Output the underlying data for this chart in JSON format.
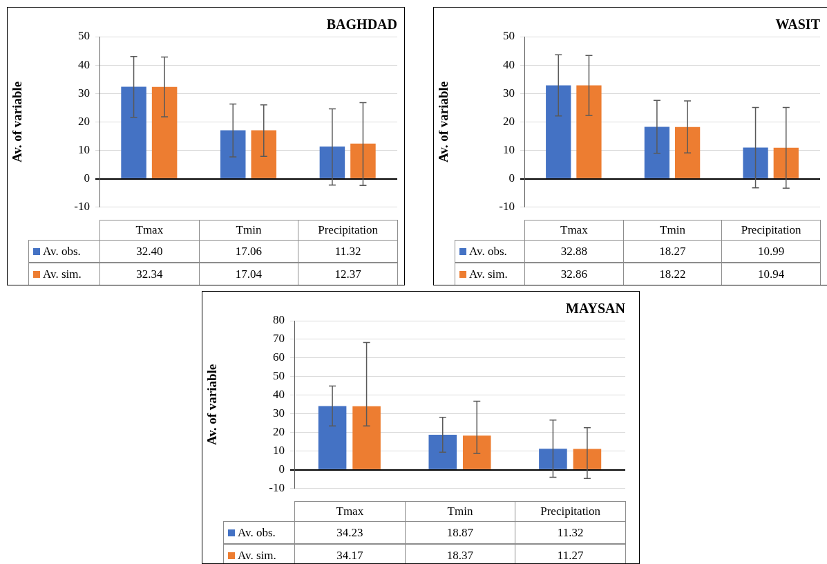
{
  "chart_data": [
    {
      "type": "bar",
      "title": "BAGHDAD",
      "ylabel": "Av. of variable",
      "categories": [
        "Tmax",
        "Tmin",
        "Precipitation"
      ],
      "ylim": [
        -10,
        50
      ],
      "yticks": [
        -10,
        0,
        10,
        20,
        30,
        40,
        50
      ],
      "grid": "y",
      "legend": "bottom",
      "series": [
        {
          "name": "Av. obs.",
          "color": "#4472c4",
          "values": [
            32.4,
            17.06,
            11.32
          ],
          "value_labels": [
            "32.40",
            "17.06",
            "11.32"
          ],
          "errors": [
            [
              21.6,
              43.0
            ],
            [
              7.7,
              26.3
            ],
            [
              -2.2,
              24.6
            ]
          ]
        },
        {
          "name": "Av. sim.",
          "color": "#ed7d31",
          "values": [
            32.34,
            17.04,
            12.37
          ],
          "value_labels": [
            "32.34",
            "17.04",
            "12.37"
          ],
          "errors": [
            [
              21.8,
              42.8
            ],
            [
              7.9,
              26.0
            ],
            [
              -2.3,
              26.8
            ]
          ]
        }
      ]
    },
    {
      "type": "bar",
      "title": "WASIT",
      "ylabel": "Av. of variable",
      "categories": [
        "Tmax",
        "Tmin",
        "Precipitation"
      ],
      "ylim": [
        -10,
        50
      ],
      "yticks": [
        -10,
        0,
        10,
        20,
        30,
        40,
        50
      ],
      "grid": "y",
      "legend": "bottom",
      "series": [
        {
          "name": "Av. obs.",
          "color": "#4472c4",
          "values": [
            32.88,
            18.27,
            10.99
          ],
          "value_labels": [
            "32.88",
            "18.27",
            "10.99"
          ],
          "errors": [
            [
              22.1,
              43.6
            ],
            [
              9.0,
              27.6
            ],
            [
              -3.2,
              25.1
            ]
          ]
        },
        {
          "name": "Av. sim.",
          "color": "#ed7d31",
          "values": [
            32.86,
            18.22,
            10.94
          ],
          "value_labels": [
            "32.86",
            "18.22",
            "10.94"
          ],
          "errors": [
            [
              22.3,
              43.4
            ],
            [
              9.1,
              27.4
            ],
            [
              -3.3,
              25.1
            ]
          ]
        }
      ]
    },
    {
      "type": "bar",
      "title": "MAYSAN",
      "ylabel": "Av. of variable",
      "categories": [
        "Tmax",
        "Tmin",
        "Precipitation"
      ],
      "ylim": [
        -10,
        80
      ],
      "yticks": [
        -10,
        0,
        10,
        20,
        30,
        40,
        50,
        60,
        70,
        80
      ],
      "grid": "y",
      "legend": "bottom",
      "series": [
        {
          "name": "Av. obs.",
          "color": "#4472c4",
          "values": [
            34.23,
            18.87,
            11.32
          ],
          "value_labels": [
            "34.23",
            "18.87",
            "11.32"
          ],
          "errors": [
            [
              23.6,
              45.0
            ],
            [
              9.5,
              28.2
            ],
            [
              -4.0,
              26.7
            ]
          ]
        },
        {
          "name": "Av. sim.",
          "color": "#ed7d31",
          "values": [
            34.17,
            18.37,
            11.27
          ],
          "value_labels": [
            "34.17",
            "18.37",
            "11.27"
          ],
          "errors": [
            [
              23.6,
              68.3
            ],
            [
              8.8,
              36.8
            ],
            [
              -4.6,
              22.6
            ]
          ]
        }
      ]
    }
  ]
}
